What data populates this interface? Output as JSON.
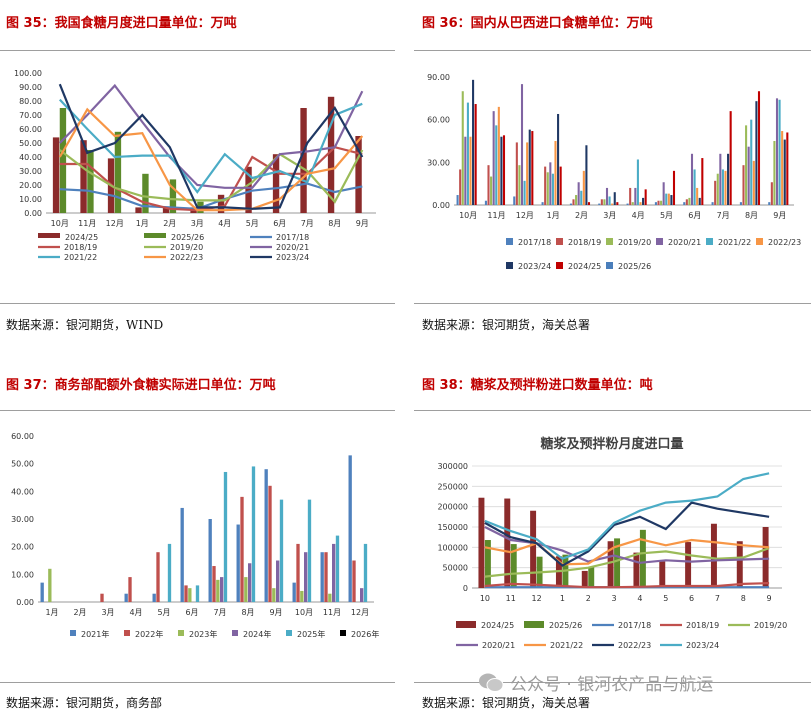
{
  "watermark": {
    "text": "公众号 · 银河农产品与航运",
    "icon": "wechat-icon"
  },
  "charts": [
    {
      "title": "图 35：我国食糖月度进口量单位：万吨",
      "source": "数据来源：银河期货，WIND",
      "chart_data": {
        "type": "bar+line",
        "categories": [
          "10月",
          "11月",
          "12月",
          "1月",
          "2月",
          "3月",
          "4月",
          "5月",
          "6月",
          "7月",
          "8月",
          "9月"
        ],
        "ylim": [
          0,
          100
        ],
        "yticks": [
          "0.00",
          "10.00",
          "20.00",
          "30.00",
          "40.00",
          "50.00",
          "60.00",
          "70.00",
          "80.00",
          "90.00",
          "100.00"
        ],
        "bar_series": [
          {
            "name": "2024/25",
            "color": "#8b2b2b",
            "values": [
              54,
              52,
              39,
              4,
              4,
              4,
              13,
              33,
              42,
              75,
              83,
              55
            ]
          },
          {
            "name": "2025/26",
            "color": "#5c8a2a",
            "values": [
              75,
              45,
              58,
              28,
              24,
              8,
              null,
              null,
              null,
              null,
              null,
              null
            ]
          }
        ],
        "line_series": [
          {
            "name": "2017/18",
            "color": "#4f81bd",
            "values": [
              17,
              16,
              12,
              5,
              4,
              3,
              10,
              16,
              18,
              21,
              15,
              19
            ]
          },
          {
            "name": "2018/19",
            "color": "#c0504d",
            "values": [
              35,
              35,
              18,
              8,
              3,
              2,
              5,
              40,
              28,
              28,
              47,
              42
            ]
          },
          {
            "name": "2019/20",
            "color": "#9bbb59",
            "values": [
              45,
              30,
              18,
              12,
              10,
              9,
              9,
              22,
              42,
              30,
              8,
              45
            ]
          },
          {
            "name": "2020/21",
            "color": "#8064a2",
            "values": [
              50,
              70,
              91,
              65,
              40,
              20,
              18,
              18,
              42,
              44,
              47,
              87
            ]
          },
          {
            "name": "2021/22",
            "color": "#4bacc6",
            "values": [
              81,
              60,
              40,
              41,
              41,
              15,
              42,
              25,
              30,
              22,
              70,
              78
            ]
          },
          {
            "name": "2022/23",
            "color": "#f79646",
            "values": [
              40,
              74,
              55,
              57,
              20,
              2,
              2,
              3,
              10,
              28,
              32,
              55
            ]
          },
          {
            "name": "2023/24",
            "color": "#1f3864",
            "values": [
              92,
              43,
              50,
              70,
              47,
              4,
              4,
              3,
              4,
              50,
              75,
              40
            ]
          }
        ]
      }
    },
    {
      "title": "图 36：国内从巴西进口食糖单位：万吨",
      "source": "数据来源：银河期货，海关总署",
      "chart_data": {
        "type": "bar",
        "categories": [
          "10月",
          "11月",
          "12月",
          "1月",
          "2月",
          "3月",
          "4月",
          "5月",
          "6月",
          "7月",
          "8月",
          "9月"
        ],
        "ylim": [
          0,
          90
        ],
        "yticks": [
          "0.00",
          "30.00",
          "60.00",
          "90.00"
        ],
        "series": [
          {
            "name": "2017/18",
            "color": "#4f81bd",
            "values": [
              7,
              3,
              6,
              2,
              1,
              1,
              1,
              2,
              2,
              2,
              2,
              2
            ]
          },
          {
            "name": "2018/19",
            "color": "#c0504d",
            "values": [
              25,
              28,
              44,
              27,
              4,
              4,
              12,
              3,
              4,
              17,
              28,
              16
            ]
          },
          {
            "name": "2019/20",
            "color": "#9bbb59",
            "values": [
              80,
              20,
              28,
              23,
              7,
              4,
              2,
              3,
              5,
              22,
              56,
              45
            ]
          },
          {
            "name": "2020/21",
            "color": "#8064a2",
            "values": [
              48,
              66,
              85,
              30,
              16,
              12,
              12,
              16,
              36,
              36,
              41,
              75
            ]
          },
          {
            "name": "2021/22",
            "color": "#4bacc6",
            "values": [
              72,
              56,
              17,
              22,
              10,
              6,
              32,
              8,
              25,
              25,
              60,
              74
            ]
          },
          {
            "name": "2022/23",
            "color": "#f79646",
            "values": [
              48,
              69,
              44,
              45,
              24,
              1,
              2,
              8,
              12,
              24,
              31,
              52
            ]
          },
          {
            "name": "2023/24",
            "color": "#1f3864",
            "values": [
              88,
              48,
              53,
              64,
              42,
              9,
              5,
              7,
              5,
              36,
              73,
              46
            ]
          },
          {
            "name": "2024/25",
            "color": "#c00000",
            "values": [
              71,
              49,
              52,
              27,
              2,
              2,
              11,
              24,
              33,
              66,
              80,
              51
            ]
          },
          {
            "name": "2025/26",
            "color": "#4a7ebb",
            "values": [
              null,
              null,
              null,
              null,
              null,
              null,
              null,
              null,
              null,
              null,
              null,
              null
            ]
          }
        ]
      }
    },
    {
      "title": "图 37：商务部配额外食糖实际进口单位：万吨",
      "source": "数据来源：银河期货，商务部",
      "chart_data": {
        "type": "bar",
        "categories": [
          "1月",
          "2月",
          "3月",
          "4月",
          "5月",
          "6月",
          "7月",
          "8月",
          "9月",
          "10月",
          "11月",
          "12月"
        ],
        "ylim": [
          0,
          60
        ],
        "yticks": [
          "0.00",
          "10.00",
          "20.00",
          "30.00",
          "40.00",
          "50.00",
          "60.00"
        ],
        "series": [
          {
            "name": "2021年",
            "color": "#4f81bd",
            "values": [
              7,
              null,
              null,
              3,
              3,
              34,
              30,
              28,
              48,
              7,
              18,
              53
            ]
          },
          {
            "name": "2022年",
            "color": "#c0504d",
            "values": [
              null,
              null,
              3,
              9,
              18,
              6,
              13,
              38,
              42,
              21,
              18,
              15
            ]
          },
          {
            "name": "2023年",
            "color": "#9bbb59",
            "values": [
              12,
              null,
              null,
              null,
              null,
              5,
              8,
              9,
              5,
              4,
              3,
              null
            ]
          },
          {
            "name": "2024年",
            "color": "#8064a2",
            "values": [
              null,
              null,
              null,
              null,
              null,
              null,
              9,
              14,
              15,
              18,
              21,
              5
            ]
          },
          {
            "name": "2025年",
            "color": "#4bacc6",
            "values": [
              null,
              null,
              null,
              null,
              21,
              6,
              47,
              49,
              37,
              37,
              24,
              21
            ]
          },
          {
            "name": "2026年",
            "color": "#000000",
            "values": [
              null,
              null,
              null,
              null,
              null,
              null,
              null,
              null,
              null,
              null,
              null,
              null
            ]
          }
        ]
      }
    },
    {
      "title": "图 38：糖浆及预拌粉进口数量单位：吨",
      "source": "数据来源：银河期货，海关总署",
      "chart_data": {
        "type": "bar+line",
        "inner_title": "糖浆及预拌粉月度进口量",
        "categories": [
          "10",
          "11",
          "12",
          "1",
          "2",
          "3",
          "4",
          "5",
          "6",
          "7",
          "8",
          "9"
        ],
        "ylim": [
          0,
          300000
        ],
        "yticks": [
          "0",
          "50000",
          "100000",
          "150000",
          "200000",
          "250000",
          "300000"
        ],
        "bar_series": [
          {
            "name": "2024/25",
            "color": "#8b2b2b",
            "values": [
              222000,
              220000,
              190000,
              78000,
              42000,
              115000,
              87000,
              65000,
              113000,
              158000,
              115000,
              150000
            ]
          },
          {
            "name": "2025/26",
            "color": "#5c8a2a",
            "values": [
              118000,
              108000,
              77000,
              82000,
              52000,
              122000,
              143000,
              null,
              null,
              null,
              null,
              null
            ]
          }
        ],
        "line_series": [
          {
            "name": "2017/18",
            "color": "#4f81bd",
            "values": [
              2000,
              2000,
              2000,
              2000,
              2000,
              2000,
              2000,
              2000,
              2000,
              2000,
              2000,
              2000
            ]
          },
          {
            "name": "2018/19",
            "color": "#c0504d",
            "values": [
              5000,
              10000,
              8000,
              5000,
              2000,
              2000,
              3000,
              5000,
              5000,
              5000,
              10000,
              12000
            ]
          },
          {
            "name": "2019/20",
            "color": "#9bbb59",
            "values": [
              28000,
              35000,
              38000,
              42000,
              50000,
              65000,
              85000,
              90000,
              80000,
              72000,
              75000,
              98000
            ]
          },
          {
            "name": "2020/21",
            "color": "#8064a2",
            "values": [
              150000,
              118000,
              110000,
              92000,
              65000,
              80000,
              62000,
              68000,
              65000,
              68000,
              70000,
              72000
            ]
          },
          {
            "name": "2021/22",
            "color": "#f79646",
            "values": [
              100000,
              88000,
              110000,
              58000,
              60000,
              100000,
              120000,
              105000,
              118000,
              112000,
              105000,
              100000
            ]
          },
          {
            "name": "2022/23",
            "color": "#1f3864",
            "values": [
              160000,
              125000,
              110000,
              55000,
              90000,
              155000,
              175000,
              145000,
              210000,
              195000,
              185000,
              175000
            ]
          },
          {
            "name": "2023/24",
            "color": "#4bacc6",
            "values": [
              165000,
              140000,
              120000,
              72000,
              95000,
              160000,
              190000,
              210000,
              215000,
              225000,
              268000,
              282000
            ]
          }
        ],
        "legend_order": [
          "2024/25",
          "2025/26",
          "2017/18",
          "2018/19",
          "2019/20",
          "2020/21",
          "2021/22",
          "2022/23",
          "2023/24"
        ]
      }
    }
  ]
}
